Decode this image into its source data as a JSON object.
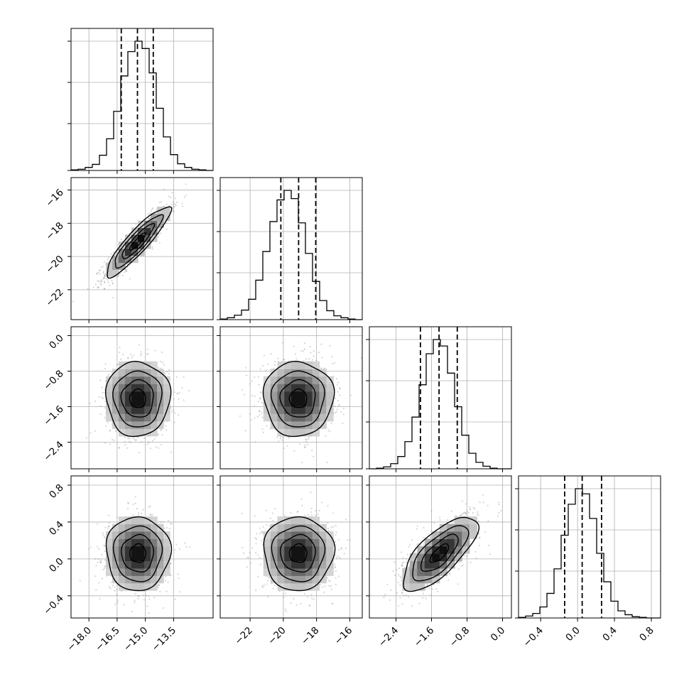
{
  "chart_data": {
    "type": "corner",
    "grid": true,
    "parameters": [
      {
        "mean": -15.4,
        "sd": 0.85,
        "lim": [
          -18.95,
          -11.4
        ],
        "ticks": [
          -18.0,
          -16.5,
          -15.0,
          -13.5
        ],
        "tick_labels": [
          "−18.0",
          "−16.5",
          "−15.0",
          "−13.5"
        ],
        "quantiles": [
          -16.28,
          -15.42,
          -14.58
        ]
      },
      {
        "mean": -19.1,
        "sd": 1.05,
        "lim": [
          -23.8,
          -15.25
        ],
        "ticks": [
          -22,
          -20,
          -18,
          -16
        ],
        "tick_labels": [
          "−22",
          "−20",
          "−18",
          "−16"
        ],
        "quantiles": [
          -20.15,
          -19.08,
          -18.05
        ]
      },
      {
        "mean": -1.42,
        "sd": 0.42,
        "lim": [
          -3.0,
          0.2
        ],
        "ticks": [
          -2.4,
          -1.6,
          -0.8,
          0.0
        ],
        "tick_labels": [
          "−2.4",
          "−1.6",
          "−0.8",
          "0.0"
        ],
        "quantiles": [
          -1.85,
          -1.43,
          -1.02
        ]
      },
      {
        "mean": 0.06,
        "sd": 0.2,
        "lim": [
          -0.64,
          0.9
        ],
        "ticks": [
          -0.4,
          0.0,
          0.4,
          0.8
        ],
        "tick_labels": [
          "−0.4",
          "0.0",
          "0.4",
          "0.8"
        ],
        "quantiles": [
          -0.14,
          0.05,
          0.26
        ]
      }
    ],
    "correlations": [
      [
        1,
        0.9,
        0,
        0
      ],
      [
        0.9,
        1,
        0,
        0
      ],
      [
        0,
        0,
        1,
        0.72
      ],
      [
        0,
        0,
        0.72,
        1
      ]
    ],
    "histograms": [
      {
        "param": 0,
        "bins": 20,
        "counts": [
          1,
          2,
          5,
          10,
          25,
          52,
          97,
          155,
          195,
          212,
          200,
          160,
          102,
          55,
          26,
          11,
          5,
          2,
          1,
          0
        ]
      },
      {
        "param": 1,
        "bins": 20,
        "counts": [
          1,
          3,
          7,
          15,
          32,
          62,
          107,
          154,
          188,
          203,
          190,
          152,
          104,
          60,
          30,
          14,
          6,
          3,
          1,
          0
        ]
      },
      {
        "param": 2,
        "bins": 20,
        "counts": [
          0,
          1,
          3,
          8,
          19,
          42,
          80,
          130,
          178,
          200,
          190,
          148,
          96,
          52,
          24,
          10,
          4,
          1,
          0,
          0
        ]
      },
      {
        "param": 3,
        "bins": 20,
        "counts": [
          1,
          3,
          7,
          17,
          38,
          76,
          128,
          176,
          200,
          192,
          154,
          100,
          56,
          26,
          11,
          5,
          2,
          1,
          0,
          0
        ]
      }
    ],
    "contour_levels_sigma": [
      0.5,
      1.0,
      1.5,
      2.0
    ]
  }
}
